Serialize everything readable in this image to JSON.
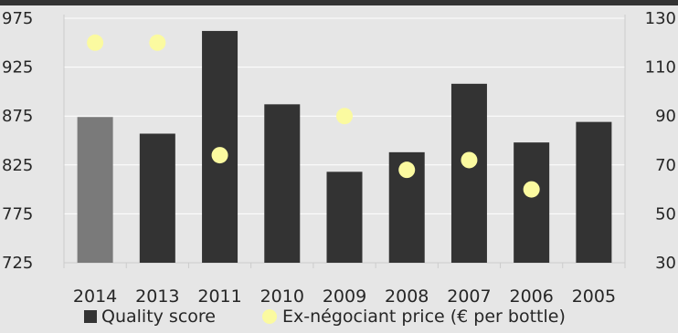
{
  "chart_data": {
    "type": "bar",
    "categories": [
      "2014",
      "2013",
      "2011",
      "2010",
      "2009",
      "2008",
      "2007",
      "2006",
      "2005"
    ],
    "series": [
      {
        "name": "Quality score",
        "axis": "left",
        "type": "bar",
        "values": [
          874,
          857,
          962,
          887,
          818,
          838,
          908,
          848,
          869
        ],
        "colors": [
          "#7a7a7a",
          "#333333",
          "#333333",
          "#333333",
          "#333333",
          "#333333",
          "#333333",
          "#333333",
          "#333333"
        ]
      },
      {
        "name": "Ex-négociant price (€ per bottle)",
        "axis": "right",
        "type": "scatter",
        "values": [
          120,
          120,
          74,
          null,
          90,
          68,
          72,
          60,
          null
        ],
        "color": "#fbfaa0"
      }
    ],
    "y_left": {
      "ylim": [
        725,
        975
      ],
      "ticks": [
        725,
        775,
        825,
        875,
        925,
        975
      ]
    },
    "y_right": {
      "ylim": [
        30,
        130
      ],
      "ticks": [
        30,
        50,
        70,
        90,
        110,
        130
      ]
    },
    "grid": true,
    "legend": "bottom",
    "title": "",
    "xlabel": "",
    "ylabel": ""
  },
  "colors": {
    "background": "#e6e6e6",
    "top_band": "#333333",
    "grid": "#ffffff",
    "axis_line": "#cccccc",
    "text": "#262626"
  }
}
